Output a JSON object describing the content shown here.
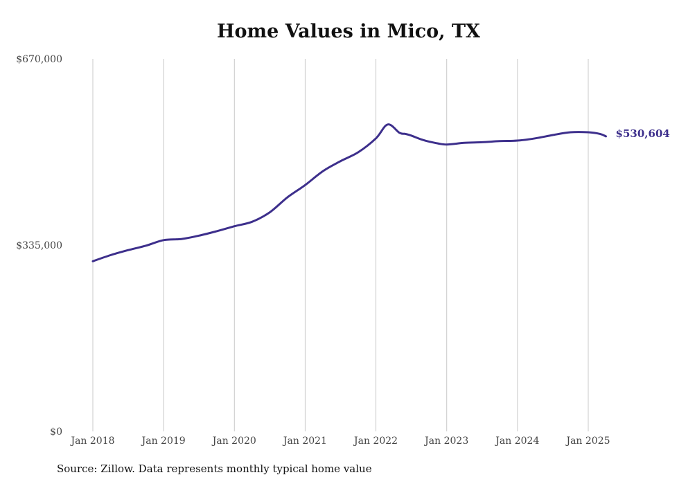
{
  "chart_data": {
    "type": "line",
    "title": "Home Values in Mico, TX",
    "xlabel": "",
    "ylabel": "",
    "ylim": [
      0,
      670000
    ],
    "y_ticks": [
      "$0",
      "$335,000",
      "$670,000"
    ],
    "y_tick_values": [
      0,
      335000,
      670000
    ],
    "x_ticks": [
      "Jan 2018",
      "Jan 2019",
      "Jan 2020",
      "Jan 2021",
      "Jan 2022",
      "Jan 2023",
      "Jan 2024",
      "Jan 2025"
    ],
    "x_tick_values": [
      "2018-01",
      "2019-01",
      "2020-01",
      "2021-01",
      "2022-01",
      "2023-01",
      "2024-01",
      "2025-01"
    ],
    "grid": "vertical",
    "line_color": "#3d2f8c",
    "series": [
      {
        "x": [
          "2018-01",
          "2018-04",
          "2018-07",
          "2018-10",
          "2019-01",
          "2019-04",
          "2019-07",
          "2019-10",
          "2020-01",
          "2020-04",
          "2020-07",
          "2020-10",
          "2021-01",
          "2021-04",
          "2021-07",
          "2021-10",
          "2022-01",
          "2022-03",
          "2022-05",
          "2022-06",
          "2022-07",
          "2022-09",
          "2022-11",
          "2023-01",
          "2023-04",
          "2023-07",
          "2023-10",
          "2024-01",
          "2024-04",
          "2024-07",
          "2024-10",
          "2025-01",
          "2025-03",
          "2025-04"
        ],
        "y": [
          306000,
          317000,
          326000,
          334000,
          344000,
          346000,
          352000,
          360000,
          369000,
          377000,
          394000,
          421000,
          443000,
          468000,
          486000,
          502000,
          527000,
          552000,
          537000,
          535000,
          532000,
          524000,
          519000,
          516000,
          519000,
          520000,
          522000,
          523000,
          527000,
          533000,
          538000,
          538000,
          535000,
          530604
        ]
      }
    ],
    "end_label": "$530,604"
  },
  "source": "Source: Zillow. Data represents monthly typical home value"
}
